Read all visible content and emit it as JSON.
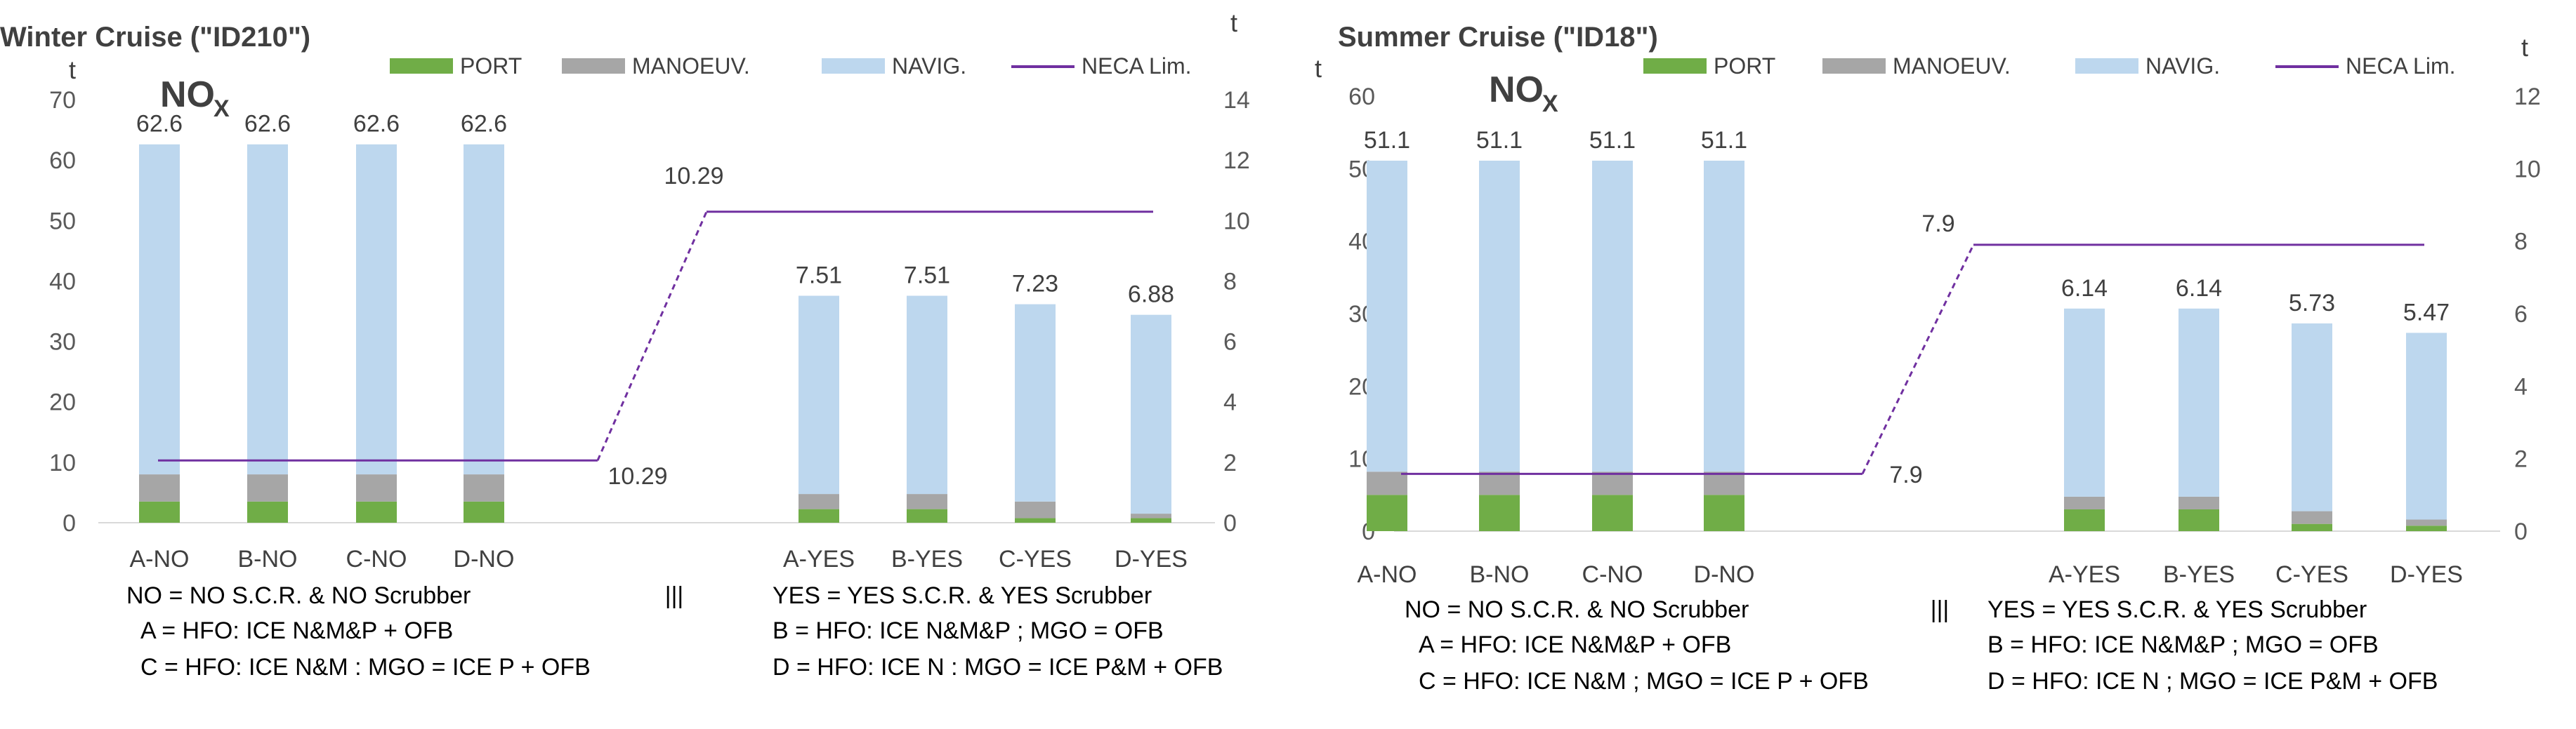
{
  "legend": {
    "port": "PORT",
    "manoeuv": "MANOEUV.",
    "navig": "NAVIG.",
    "neca": "NECA Lim."
  },
  "colors": {
    "port": "#70ad47",
    "manoeuv": "#a6a6a6",
    "navig": "#bdd7ee",
    "neca": "#7030a0"
  },
  "chart_data": [
    {
      "type": "bar",
      "stacked": true,
      "title": "Winter Cruise (\"ID210\")",
      "pollutant": "NO",
      "pollutant_sub": "X",
      "y_unit_left": "t",
      "y_unit_right": "t",
      "ylim_left": [
        0,
        70
      ],
      "yticks_left": [
        "0",
        "10",
        "20",
        "30",
        "40",
        "50",
        "60",
        "70"
      ],
      "ylim_right": [
        0,
        14
      ],
      "yticks_right": [
        "0",
        "2",
        "4",
        "6",
        "8",
        "10",
        "12",
        "14"
      ],
      "groups": [
        {
          "axis": "left",
          "categories": [
            "A-NO",
            "B-NO",
            "C-NO",
            "D-NO"
          ],
          "port": [
            3.5,
            3.5,
            3.5,
            3.5
          ],
          "manoeuv": [
            4.5,
            4.5,
            4.5,
            4.5
          ],
          "navig": [
            54.6,
            54.6,
            54.6,
            54.6
          ],
          "totals": [
            "62.6",
            "62.6",
            "62.6",
            "62.6"
          ]
        },
        {
          "axis": "right",
          "categories": [
            "A-YES",
            "B-YES",
            "C-YES",
            "D-YES"
          ],
          "port": [
            0.45,
            0.45,
            0.15,
            0.15
          ],
          "manoeuv": [
            0.5,
            0.5,
            0.55,
            0.15
          ],
          "navig": [
            6.56,
            6.56,
            6.53,
            6.58
          ],
          "totals": [
            "7.51",
            "7.51",
            "7.23",
            "6.88"
          ]
        }
      ],
      "neca": {
        "left_value": 2.06,
        "right_value": 10.29,
        "label_low": "10.29",
        "label_high": "10.29"
      },
      "notes": {
        "no_def": "NO = NO S.C.R. & NO Scrubber",
        "sep": "|||",
        "yes_def": "YES = YES S.C.R. & YES Scrubber",
        "a_def": "A = HFO: ICE N&M&P + OFB",
        "b_def": "B = HFO: ICE N&M&P  ;  MGO = OFB",
        "c_def": "C = HFO: ICE N&M  : MGO = ICE P + OFB",
        "d_def": "D = HFO: ICE N  :  MGO = ICE P&M + OFB"
      }
    },
    {
      "type": "bar",
      "stacked": true,
      "title": "Summer Cruise (\"ID18\")",
      "pollutant": "NO",
      "pollutant_sub": "X",
      "y_unit_left": "t",
      "y_unit_right": "t",
      "ylim_left": [
        0,
        60
      ],
      "yticks_left": [
        "0",
        "10",
        "20",
        "30",
        "40",
        "50",
        "60"
      ],
      "ylim_right": [
        0,
        12
      ],
      "yticks_right": [
        "0",
        "2",
        "4",
        "6",
        "8",
        "10",
        "12"
      ],
      "groups": [
        {
          "axis": "left",
          "categories": [
            "A-NO",
            "B-NO",
            "C-NO",
            "D-NO"
          ],
          "port": [
            5.0,
            5.0,
            5.0,
            5.0
          ],
          "manoeuv": [
            3.2,
            3.2,
            3.2,
            3.2
          ],
          "navig": [
            42.9,
            42.9,
            42.9,
            42.9
          ],
          "totals": [
            "51.1",
            "51.1",
            "51.1",
            "51.1"
          ]
        },
        {
          "axis": "right",
          "categories": [
            "A-YES",
            "B-YES",
            "C-YES",
            "D-YES"
          ],
          "port": [
            0.6,
            0.6,
            0.2,
            0.15
          ],
          "manoeuv": [
            0.35,
            0.35,
            0.35,
            0.17
          ],
          "navig": [
            5.19,
            5.19,
            5.18,
            5.15
          ],
          "totals": [
            "6.14",
            "6.14",
            "5.73",
            "5.47"
          ]
        }
      ],
      "neca": {
        "left_value": 1.58,
        "right_value": 7.9,
        "label_low": "7.9",
        "label_high": "7.9"
      },
      "notes": {
        "no_def": "NO = NO S.C.R. & NO Scrubber",
        "sep": "|||",
        "yes_def": "YES = YES S.C.R. & YES Scrubber",
        "a_def": "A = HFO: ICE N&M&P + OFB",
        "b_def": "B = HFO: ICE N&M&P  ;  MGO = OFB",
        "c_def": "C = HFO: ICE N&M  ; MGO = ICE P + OFB",
        "d_def": "D = HFO: ICE N  ;  MGO = ICE P&M + OFB"
      }
    }
  ]
}
